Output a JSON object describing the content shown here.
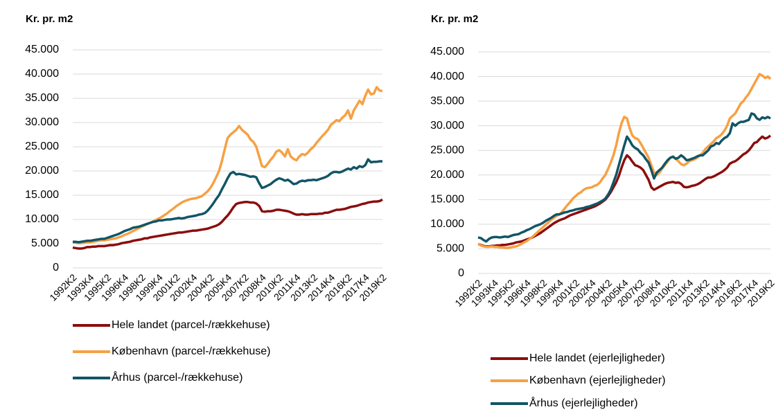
{
  "chart_data": [
    {
      "type": "line",
      "title": "Kr. pr. m2",
      "categories": [
        "1992K2",
        null,
        null,
        null,
        null,
        null,
        "1993K4",
        null,
        null,
        null,
        null,
        null,
        "1995K2",
        null,
        null,
        null,
        null,
        null,
        "1996K4",
        null,
        null,
        null,
        null,
        null,
        "1998K2",
        null,
        null,
        null,
        null,
        null,
        "1999K4",
        null,
        null,
        null,
        null,
        null,
        "2001K2",
        null,
        null,
        null,
        null,
        null,
        "2002K4",
        null,
        null,
        null,
        null,
        null,
        "2004K2",
        null,
        null,
        null,
        null,
        null,
        "2005K4",
        null,
        null,
        null,
        null,
        null,
        "2007K2",
        null,
        null,
        null,
        null,
        null,
        "2008K4",
        null,
        null,
        null,
        null,
        null,
        "2010K2",
        null,
        null,
        null,
        null,
        null,
        "2011K4",
        null,
        null,
        null,
        null,
        null,
        "2013K2",
        null,
        null,
        null,
        null,
        null,
        "2014K4",
        null,
        null,
        null,
        null,
        null,
        "2016K2",
        null,
        null,
        null,
        null,
        null,
        "2017K4",
        null,
        null,
        null,
        null,
        null,
        "2019K2"
      ],
      "ylim": [
        0,
        45000
      ],
      "yticks": [
        {
          "value": 0,
          "label": "0"
        },
        {
          "value": 5000,
          "label": "5.000"
        },
        {
          "value": 10000,
          "label": "10.000"
        },
        {
          "value": 15000,
          "label": "15.000"
        },
        {
          "value": 20000,
          "label": "20.000"
        },
        {
          "value": 25000,
          "label": "25.000"
        },
        {
          "value": 30000,
          "label": "30.000"
        },
        {
          "value": 35000,
          "label": "35.000"
        },
        {
          "value": 40000,
          "label": "40.000"
        },
        {
          "value": 45000,
          "label": "45.000"
        }
      ],
      "grid": true,
      "series": [
        {
          "name": "Hele landet (parcel-/rækkehuse)",
          "color": "#8b0d0d",
          "values": [
            4200,
            4100,
            4000,
            4000,
            4100,
            4300,
            4300,
            4400,
            4400,
            4500,
            4500,
            4500,
            4600,
            4700,
            4700,
            4800,
            4900,
            5100,
            5200,
            5300,
            5400,
            5600,
            5700,
            5800,
            5900,
            6100,
            6100,
            6300,
            6400,
            6500,
            6600,
            6700,
            6800,
            6900,
            7000,
            7100,
            7200,
            7300,
            7300,
            7400,
            7500,
            7600,
            7700,
            7700,
            7800,
            7900,
            8000,
            8100,
            8300,
            8500,
            8700,
            9000,
            9500,
            10200,
            10800,
            11600,
            12500,
            13200,
            13400,
            13500,
            13600,
            13600,
            13500,
            13500,
            13300,
            12800,
            11700,
            11600,
            11700,
            11700,
            11800,
            12000,
            12000,
            11900,
            11800,
            11700,
            11500,
            11200,
            11000,
            11000,
            11100,
            11000,
            11000,
            11100,
            11100,
            11100,
            11200,
            11200,
            11400,
            11400,
            11600,
            11800,
            12000,
            12000,
            12100,
            12200,
            12400,
            12600,
            12700,
            12800,
            13000,
            13200,
            13300,
            13500,
            13600,
            13700,
            13700,
            13800,
            14100
          ]
        },
        {
          "name": "København (parcel-/rækkehuse)",
          "color": "#f7a043",
          "values": [
            5300,
            5200,
            5100,
            5100,
            5200,
            5300,
            5300,
            5400,
            5500,
            5600,
            5700,
            5700,
            5800,
            5900,
            6000,
            6100,
            6300,
            6500,
            6800,
            7000,
            7300,
            7600,
            7900,
            8200,
            8500,
            8800,
            9100,
            9300,
            9600,
            9900,
            10200,
            10500,
            10900,
            11300,
            11800,
            12200,
            12700,
            13100,
            13500,
            13800,
            14000,
            14200,
            14300,
            14400,
            14600,
            14800,
            15300,
            15800,
            16500,
            17500,
            18700,
            20000,
            22000,
            24500,
            26800,
            27500,
            28000,
            28500,
            29300,
            28500,
            28000,
            27500,
            26500,
            26000,
            25000,
            23000,
            21000,
            20800,
            21500,
            22300,
            23000,
            24000,
            24300,
            23800,
            23000,
            24500,
            23000,
            22500,
            22200,
            23000,
            23500,
            23300,
            23800,
            24500,
            25000,
            25800,
            26500,
            27200,
            27800,
            28500,
            29500,
            30000,
            30500,
            30300,
            31000,
            31500,
            32500,
            30800,
            32500,
            33500,
            34500,
            33800,
            35500,
            36800,
            35800,
            36000,
            37300,
            36600,
            36500
          ]
        },
        {
          "name": "Århus (parcel-/rækkehuse)",
          "color": "#115566",
          "values": [
            5400,
            5400,
            5300,
            5400,
            5500,
            5600,
            5600,
            5700,
            5800,
            5900,
            6000,
            6000,
            6200,
            6400,
            6600,
            6800,
            7000,
            7300,
            7600,
            7800,
            8000,
            8300,
            8400,
            8500,
            8700,
            8900,
            9100,
            9300,
            9500,
            9600,
            9800,
            9800,
            9900,
            10000,
            10000,
            10100,
            10200,
            10300,
            10200,
            10300,
            10500,
            10600,
            10700,
            10800,
            11000,
            11100,
            11300,
            11800,
            12500,
            13300,
            14200,
            15000,
            16200,
            17300,
            18500,
            19500,
            19800,
            19300,
            19400,
            19300,
            19200,
            19000,
            18800,
            18900,
            18700,
            17500,
            16500,
            16700,
            17000,
            17300,
            17800,
            18200,
            18500,
            18300,
            18000,
            18200,
            17800,
            17300,
            17400,
            17800,
            18000,
            17900,
            18100,
            18100,
            18200,
            18100,
            18300,
            18500,
            18700,
            19000,
            19500,
            19800,
            19800,
            19700,
            19900,
            20200,
            20500,
            20300,
            20800,
            20500,
            21000,
            20800,
            21200,
            22400,
            21800,
            21900,
            21900,
            22000,
            22000
          ]
        }
      ]
    },
    {
      "type": "line",
      "title": "Kr. pr. m2",
      "categories": [
        "1992K2",
        null,
        null,
        null,
        null,
        null,
        "1993K4",
        null,
        null,
        null,
        null,
        null,
        "1995K2",
        null,
        null,
        null,
        null,
        null,
        "1996K4",
        null,
        null,
        null,
        null,
        null,
        "1998K2",
        null,
        null,
        null,
        null,
        null,
        "1999K4",
        null,
        null,
        null,
        null,
        null,
        "2001K2",
        null,
        null,
        null,
        null,
        null,
        "2002K4",
        null,
        null,
        null,
        null,
        null,
        "2004K2",
        null,
        null,
        null,
        null,
        null,
        "2005K4",
        null,
        null,
        null,
        null,
        null,
        "2007K2",
        null,
        null,
        null,
        null,
        null,
        "2008K4",
        null,
        null,
        null,
        null,
        null,
        "2010K2",
        null,
        null,
        null,
        null,
        null,
        "2011K4",
        null,
        null,
        null,
        null,
        null,
        "2013K2",
        null,
        null,
        null,
        null,
        null,
        "2014K4",
        null,
        null,
        null,
        null,
        null,
        "2016K2",
        null,
        null,
        null,
        null,
        null,
        "2017K4",
        null,
        null,
        null,
        null,
        null,
        "2019K2"
      ],
      "ylim": [
        0,
        45000
      ],
      "yticks": [
        {
          "value": 0,
          "label": "0"
        },
        {
          "value": 5000,
          "label": "5.000"
        },
        {
          "value": 10000,
          "label": "10.000"
        },
        {
          "value": 15000,
          "label": "15.000"
        },
        {
          "value": 20000,
          "label": "20.000"
        },
        {
          "value": 25000,
          "label": "25.000"
        },
        {
          "value": 30000,
          "label": "30.000"
        },
        {
          "value": 35000,
          "label": "35.000"
        },
        {
          "value": 40000,
          "label": "40.000"
        },
        {
          "value": 45000,
          "label": "45.000"
        }
      ],
      "grid": true,
      "series": [
        {
          "name": "Hele landet (ejerlejligheder)",
          "color": "#8b0d0d",
          "values": [
            6000,
            5800,
            5600,
            5500,
            5500,
            5600,
            5600,
            5700,
            5700,
            5800,
            5800,
            5900,
            6000,
            6100,
            6300,
            6400,
            6500,
            6700,
            6900,
            7100,
            7300,
            7600,
            7900,
            8200,
            8600,
            9000,
            9400,
            9800,
            10200,
            10500,
            10800,
            11000,
            11200,
            11500,
            11800,
            12000,
            12200,
            12400,
            12600,
            12800,
            13000,
            13200,
            13400,
            13600,
            13900,
            14200,
            14600,
            15000,
            15700,
            16500,
            17500,
            18500,
            19800,
            21500,
            23000,
            24000,
            23500,
            22700,
            22000,
            21800,
            21500,
            21000,
            20000,
            19000,
            17500,
            17000,
            17300,
            17600,
            17900,
            18200,
            18400,
            18500,
            18600,
            18400,
            18500,
            18200,
            17600,
            17500,
            17600,
            17800,
            17900,
            18100,
            18400,
            18800,
            19200,
            19500,
            19500,
            19700,
            20000,
            20300,
            20600,
            21000,
            21500,
            22300,
            22600,
            22800,
            23200,
            23700,
            24200,
            24500,
            25000,
            25700,
            26500,
            26700,
            27300,
            27800,
            27400,
            27600,
            28000
          ]
        },
        {
          "name": "København (ejerlejligheder)",
          "color": "#f7a043",
          "values": [
            6000,
            5700,
            5500,
            5400,
            5400,
            5500,
            5400,
            5400,
            5300,
            5300,
            5200,
            5200,
            5300,
            5400,
            5500,
            5700,
            6000,
            6300,
            6600,
            7000,
            7400,
            7900,
            8400,
            8900,
            9400,
            9900,
            10400,
            10900,
            11300,
            11700,
            12000,
            12500,
            13200,
            13900,
            14500,
            15200,
            15700,
            16200,
            16500,
            17000,
            17300,
            17400,
            17500,
            17800,
            18000,
            18500,
            19300,
            20000,
            21200,
            22500,
            24000,
            26000,
            28500,
            30500,
            31800,
            31500,
            29500,
            28000,
            27500,
            27300,
            26500,
            25500,
            24500,
            23500,
            22000,
            20500,
            20000,
            20500,
            21300,
            22000,
            22700,
            23500,
            23800,
            23300,
            22800,
            22200,
            22000,
            22300,
            22800,
            23000,
            23200,
            23500,
            24000,
            24500,
            25300,
            25800,
            26300,
            26800,
            27500,
            27800,
            28300,
            29000,
            30000,
            31500,
            32000,
            32500,
            33500,
            34500,
            35000,
            35800,
            36500,
            37500,
            38500,
            39500,
            40500,
            40200,
            39700,
            40000,
            39500
          ]
        },
        {
          "name": "Århus (ejerlejligheder)",
          "color": "#115566",
          "values": [
            7300,
            7200,
            6800,
            6500,
            7000,
            7300,
            7400,
            7400,
            7300,
            7400,
            7500,
            7400,
            7600,
            7800,
            7900,
            8000,
            8300,
            8500,
            8800,
            9000,
            9300,
            9600,
            9800,
            10000,
            10300,
            10700,
            11000,
            11300,
            11700,
            12000,
            12000,
            12200,
            12400,
            12500,
            12700,
            12800,
            13000,
            13100,
            13200,
            13300,
            13500,
            13600,
            13800,
            14000,
            14200,
            14500,
            14800,
            15200,
            16000,
            17000,
            18500,
            20000,
            22000,
            24000,
            26000,
            27800,
            27000,
            26000,
            25500,
            25200,
            24500,
            24000,
            23200,
            22500,
            21000,
            19300,
            20500,
            21000,
            21500,
            22300,
            23000,
            23500,
            23700,
            23300,
            23500,
            24000,
            23600,
            23000,
            23100,
            23300,
            23500,
            23800,
            24000,
            24000,
            24500,
            25000,
            25800,
            26000,
            26500,
            26300,
            27000,
            27500,
            27800,
            28500,
            30500,
            30000,
            30500,
            30800,
            30800,
            31000,
            31200,
            32500,
            32300,
            31500,
            31200,
            31700,
            31500,
            31800,
            31500
          ]
        }
      ]
    }
  ]
}
